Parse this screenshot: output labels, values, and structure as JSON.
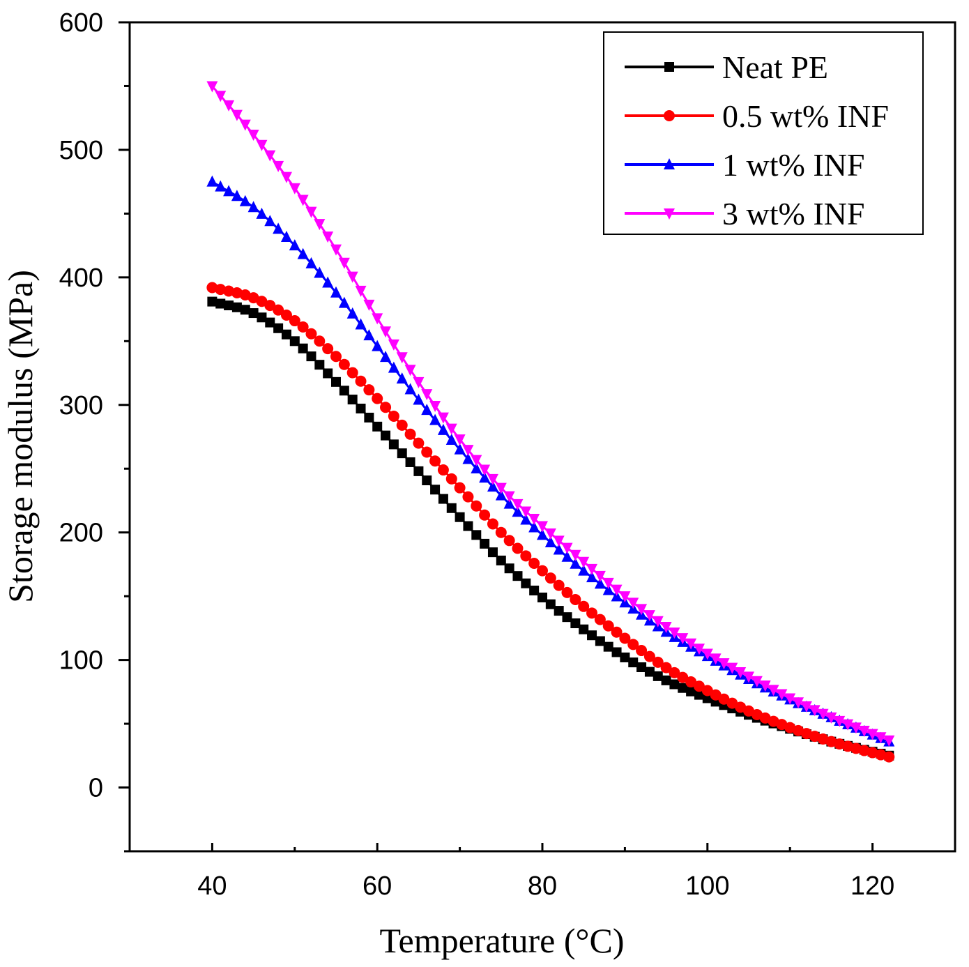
{
  "chart_data": {
    "type": "line",
    "title": "",
    "xlabel": "Temperature (°C)",
    "ylabel": "Storage modulus (MPa)",
    "xlim": [
      30,
      130
    ],
    "ylim": [
      -50,
      600
    ],
    "xticks": [
      40,
      60,
      80,
      100,
      120
    ],
    "yticks": [
      0,
      100,
      200,
      300,
      400,
      500,
      600
    ],
    "xtick_labels": [
      "40",
      "60",
      "80",
      "100",
      "120"
    ],
    "ytick_labels": [
      "0",
      "100",
      "200",
      "300",
      "400",
      "500",
      "600"
    ],
    "legend_position": "top-right",
    "grid": false,
    "series": [
      {
        "name": "Neat PE",
        "color": "#000000",
        "marker": "square",
        "x": [
          40,
          45,
          50,
          55,
          60,
          65,
          70,
          75,
          80,
          85,
          90,
          95,
          100,
          105,
          110,
          115,
          122
        ],
        "values": [
          381,
          372,
          350,
          318,
          283,
          248,
          212,
          178,
          149,
          124,
          102,
          84,
          70,
          57,
          46,
          36,
          25
        ]
      },
      {
        "name": "0.5 wt%  INF",
        "color": "#ff0000",
        "marker": "circle",
        "x": [
          40,
          45,
          50,
          55,
          60,
          65,
          70,
          75,
          80,
          85,
          90,
          95,
          100,
          105,
          110,
          115,
          122
        ],
        "values": [
          392,
          384,
          366,
          338,
          305,
          270,
          235,
          200,
          170,
          142,
          117,
          94,
          76,
          60,
          47,
          36,
          24
        ]
      },
      {
        "name": "1 wt%  INF",
        "color": "#0000ff",
        "marker": "triangle-up",
        "x": [
          40,
          45,
          50,
          55,
          60,
          65,
          70,
          75,
          80,
          85,
          90,
          95,
          100,
          105,
          110,
          115,
          122
        ],
        "values": [
          475,
          455,
          425,
          388,
          346,
          304,
          265,
          229,
          198,
          170,
          145,
          122,
          103,
          85,
          69,
          55,
          36
        ]
      },
      {
        "name": "3 wt% INF",
        "color": "#ff00ff",
        "marker": "triangle-down",
        "x": [
          40,
          45,
          50,
          55,
          60,
          65,
          70,
          75,
          80,
          85,
          90,
          95,
          100,
          105,
          110,
          115,
          122
        ],
        "values": [
          550,
          512,
          470,
          422,
          368,
          318,
          273,
          235,
          205,
          177,
          150,
          126,
          105,
          87,
          70,
          55,
          37
        ]
      }
    ]
  }
}
